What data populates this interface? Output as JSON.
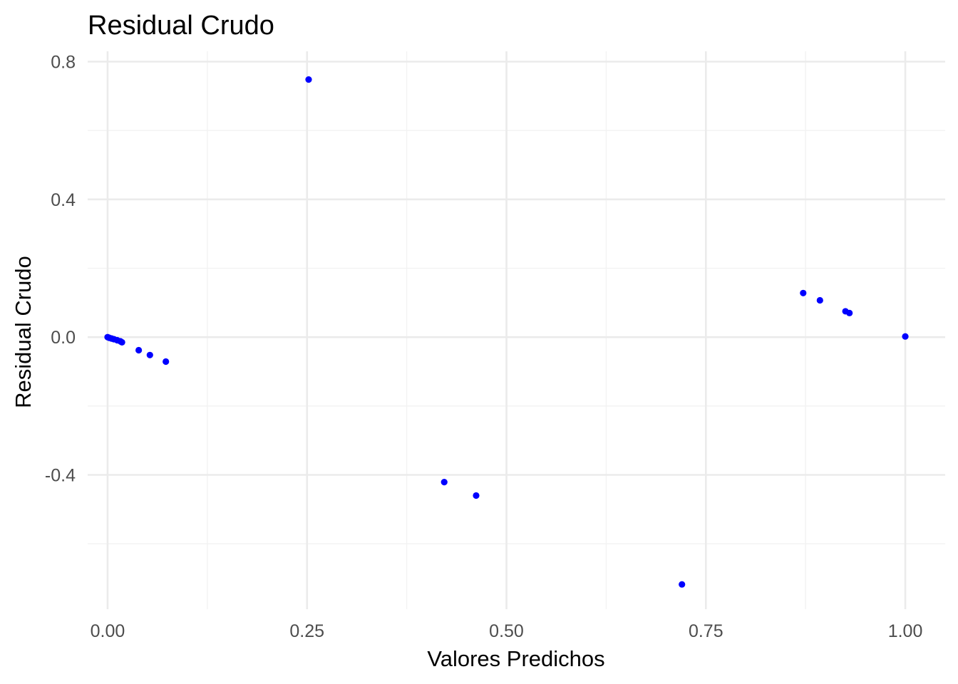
{
  "chart_data": {
    "type": "scatter",
    "title": "Residual Crudo",
    "xlabel": "Valores Predichos",
    "ylabel": "Residual Crudo",
    "xlim": [
      -0.025,
      1.05
    ],
    "ylim": [
      -0.79,
      0.83
    ],
    "x_ticks": [
      0.0,
      0.25,
      0.5,
      0.75,
      1.0
    ],
    "x_tick_labels": [
      "0.00",
      "0.25",
      "0.50",
      "0.75",
      "1.00"
    ],
    "y_ticks": [
      0.8,
      0.4,
      0.0,
      -0.4
    ],
    "y_tick_labels": [
      "0.8",
      "0.4",
      "0.0",
      "-0.4"
    ],
    "x_minor": [
      0.125,
      0.375,
      0.625,
      0.875
    ],
    "y_minor": [
      0.6,
      0.2,
      -0.2,
      -0.6
    ],
    "grid": true,
    "point_color": "#0000ff",
    "points": [
      {
        "x": 0.0,
        "y": 0.0
      },
      {
        "x": 0.002,
        "y": -0.002
      },
      {
        "x": 0.005,
        "y": -0.004
      },
      {
        "x": 0.008,
        "y": -0.006
      },
      {
        "x": 0.012,
        "y": -0.009
      },
      {
        "x": 0.016,
        "y": -0.012
      },
      {
        "x": 0.018,
        "y": -0.015
      },
      {
        "x": 0.039,
        "y": -0.038
      },
      {
        "x": 0.053,
        "y": -0.052
      },
      {
        "x": 0.073,
        "y": -0.071
      },
      {
        "x": 0.252,
        "y": 0.748
      },
      {
        "x": 0.422,
        "y": -0.421
      },
      {
        "x": 0.462,
        "y": -0.46
      },
      {
        "x": 0.72,
        "y": -0.718
      },
      {
        "x": 0.872,
        "y": 0.128
      },
      {
        "x": 0.893,
        "y": 0.107
      },
      {
        "x": 0.925,
        "y": 0.075
      },
      {
        "x": 0.93,
        "y": 0.07
      },
      {
        "x": 1.0,
        "y": 0.002
      }
    ]
  }
}
